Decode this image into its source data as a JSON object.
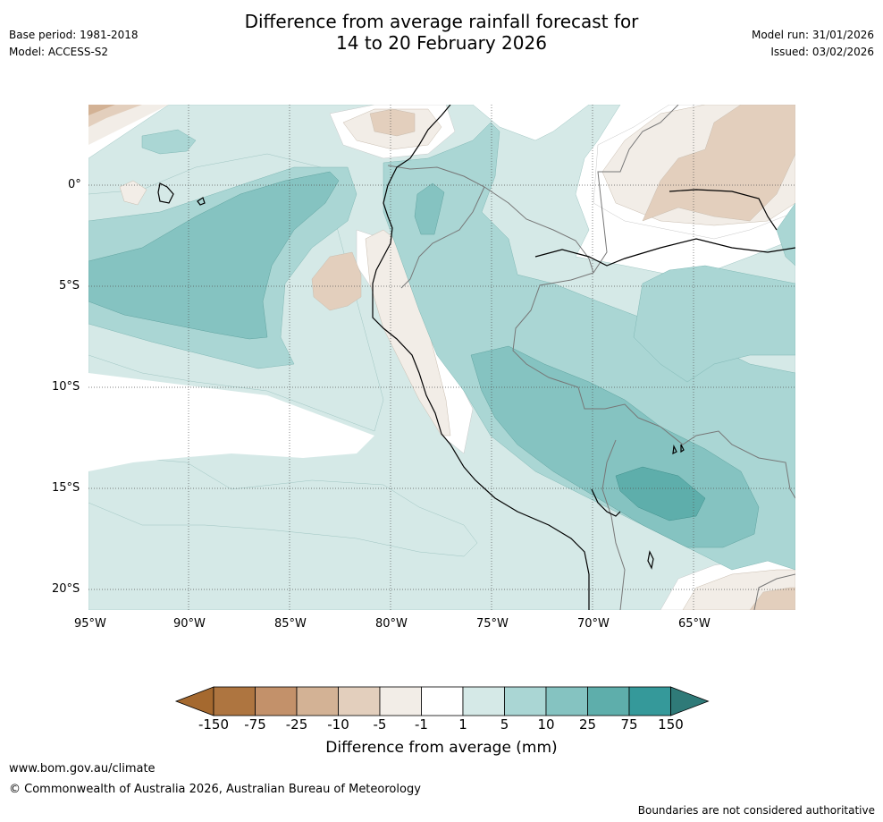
{
  "header": {
    "title_line1": "Difference from average rainfall forecast for",
    "title_line2": "14 to 20 February 2026",
    "base_period": "Base period: 1981-2018",
    "model": "Model: ACCESS-S2",
    "model_run": "Model run: 31/01/2026",
    "issued": "Issued: 03/02/2026"
  },
  "map": {
    "x_ticks": [
      "95°W",
      "90°W",
      "85°W",
      "80°W",
      "75°W",
      "70°W",
      "65°W"
    ],
    "y_ticks": [
      "0°",
      "5°S",
      "10°S",
      "15°S",
      "20°S"
    ],
    "grid": true
  },
  "colorbar": {
    "label": "Difference from average (mm)",
    "ticks": [
      "-150",
      "-75",
      "-25",
      "-10",
      "-5",
      "-1",
      "1",
      "5",
      "10",
      "25",
      "75",
      "150"
    ],
    "colors": [
      "#a5692f",
      "#ae7540",
      "#c3916a",
      "#d3b295",
      "#e3cfbd",
      "#f2ede7",
      "#ffffff",
      "#d5e9e7",
      "#aad6d4",
      "#85c3c1",
      "#5eaeab",
      "#35999a",
      "#2f7a78"
    ]
  },
  "footer": {
    "url": "www.bom.gov.au/climate",
    "copyright": "© Commonwealth of Australia 2026, Australian Bureau of Meteorology",
    "disclaimer": "Boundaries are not considered authoritative"
  }
}
